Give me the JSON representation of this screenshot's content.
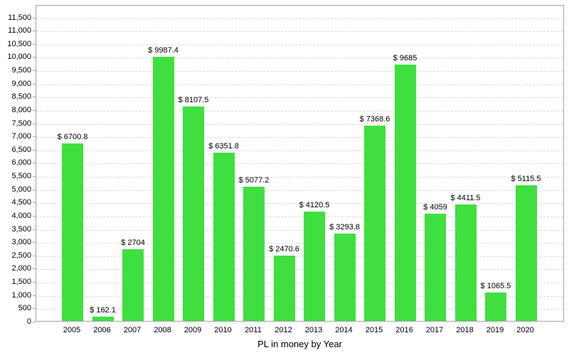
{
  "chart_data": {
    "type": "bar",
    "title": "",
    "xlabel": "PL in money by Year",
    "ylabel": "",
    "categories": [
      "2005",
      "2006",
      "2007",
      "2008",
      "2009",
      "2010",
      "2011",
      "2012",
      "2013",
      "2014",
      "2015",
      "2016",
      "2017",
      "2018",
      "2019",
      "2020"
    ],
    "values": [
      6700.8,
      162.1,
      2704,
      9987.4,
      8107.5,
      6351.8,
      5077.2,
      2470.6,
      4120.5,
      3293.8,
      7368.6,
      9685,
      4059,
      4411.5,
      1065.5,
      5115.5
    ],
    "bar_labels": [
      "$ 6700.8",
      "$ 162.1",
      "$ 2704",
      "$ 9987.4",
      "$ 8107.5",
      "$ 6351.8",
      "$ 5077.2",
      "$ 2470.6",
      "$ 4120.5",
      "$ 3293.8",
      "$ 7368.6",
      "$ 9685",
      "$ 4059",
      "$ 4411.5",
      "$ 1065.5",
      "$ 5115.5"
    ],
    "ytick_values": [
      0,
      500,
      1000,
      1500,
      2000,
      2500,
      3000,
      3500,
      4000,
      4500,
      5000,
      5500,
      6000,
      6500,
      7000,
      7500,
      8000,
      8500,
      9000,
      9500,
      10000,
      10500,
      11000,
      11500
    ],
    "ytick_labels": [
      "0",
      "500",
      "1,000",
      "1,500",
      "2,000",
      "2,500",
      "3,000",
      "3,500",
      "4,000",
      "4,500",
      "5,000",
      "5,500",
      "6,000",
      "6,500",
      "7,000",
      "7,500",
      "8,000",
      "8,500",
      "9,000",
      "9,500",
      "10,000",
      "10,500",
      "11,000",
      "11,500"
    ],
    "ylim": [
      0,
      11970
    ],
    "grid": "horizontal-dashed",
    "legend": "none",
    "colors": {
      "bar": "#3fdf3f",
      "grid": "#d9d9d9",
      "axis_border": "#a6a6a6",
      "text": "#000000",
      "background": "#ffffff"
    }
  }
}
